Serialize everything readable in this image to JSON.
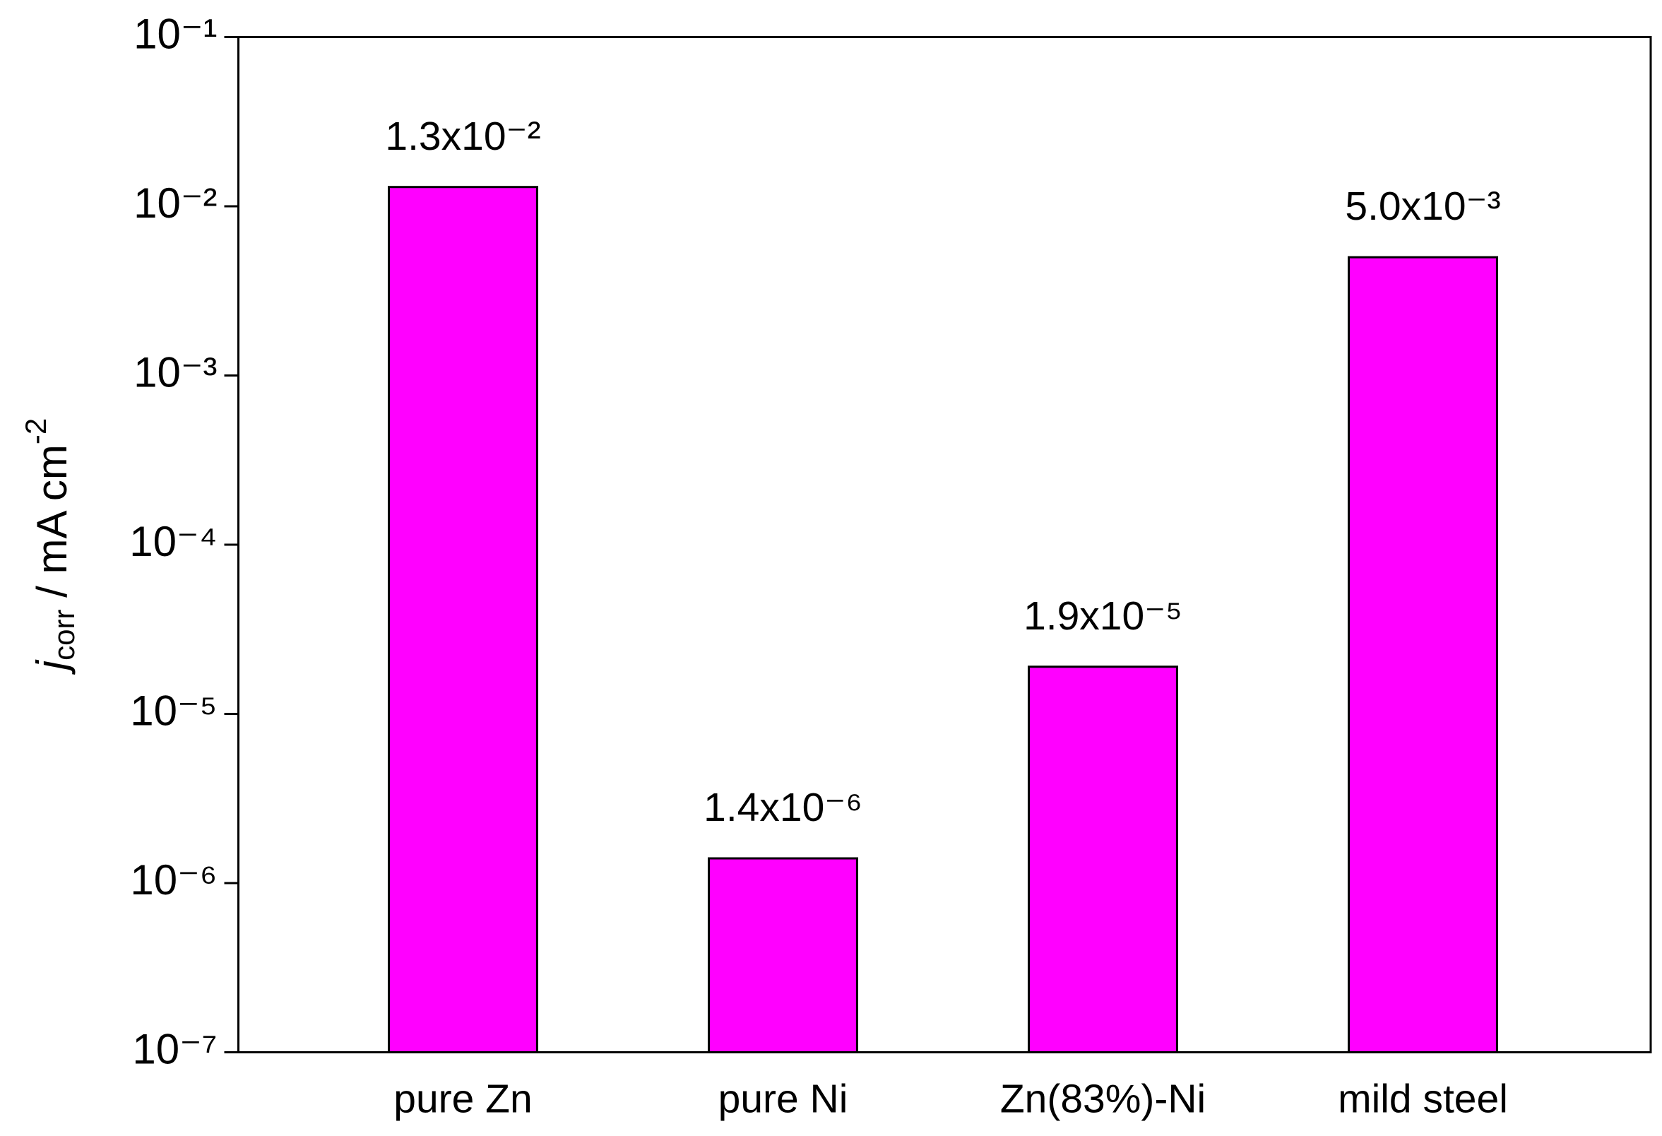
{
  "chart_data": {
    "type": "bar",
    "y_label": {
      "symbol": "j",
      "subscript": "corr",
      "unit": " / mA cm",
      "exponent": "-2"
    },
    "categories": [
      "pure Zn",
      "pure Ni",
      "Zn(83%)-Ni",
      "mild steel"
    ],
    "values": [
      0.013,
      1.4e-06,
      1.9e-05,
      0.005
    ],
    "value_labels": [
      "1.3x10⁻²",
      "1.4x10⁻⁶",
      "1.9x10⁻⁵",
      "5.0x10⁻³"
    ],
    "color": "#ff00ff",
    "log_y": true,
    "ylim": [
      1e-07,
      0.1
    ],
    "yticks": [
      {
        "value": 1e-07,
        "label": "10⁻⁷"
      },
      {
        "value": 1e-06,
        "label": "10⁻⁶"
      },
      {
        "value": 1e-05,
        "label": "10⁻⁵"
      },
      {
        "value": 0.0001,
        "label": "10⁻⁴"
      },
      {
        "value": 0.001,
        "label": "10⁻³"
      },
      {
        "value": 0.01,
        "label": "10⁻²"
      },
      {
        "value": 0.1,
        "label": "10⁻¹"
      }
    ],
    "grid": false
  }
}
